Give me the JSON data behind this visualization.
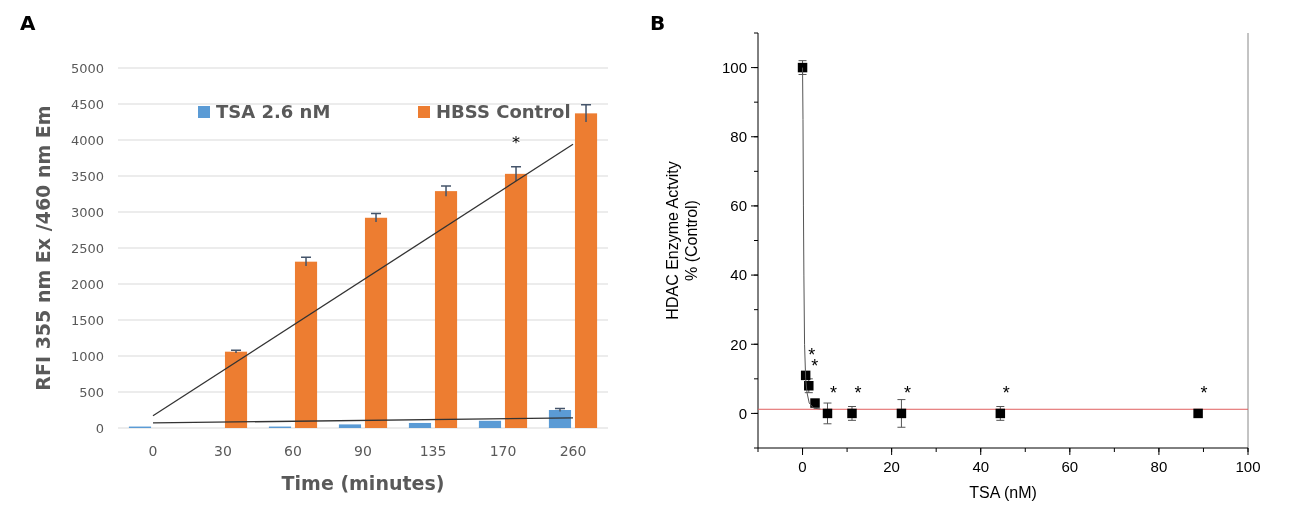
{
  "chart_data": [
    {
      "type": "bar",
      "title": "A",
      "xlabel": "Time (minutes)",
      "ylabel": "RFI 355 nm Ex /460 nm Em",
      "categories": [
        "0",
        "30",
        "60",
        "90",
        "135",
        "170",
        "260"
      ],
      "ylim": [
        0,
        5000
      ],
      "yticks": [
        0,
        500,
        1000,
        1500,
        2000,
        2500,
        3000,
        3500,
        4000,
        4500,
        5000
      ],
      "grid": "y",
      "legend": "top",
      "annotations": [
        {
          "text": "*",
          "x": "170",
          "y": 3530
        }
      ],
      "series": [
        {
          "name": "TSA 2.6 nM",
          "color": "#5b9bd5",
          "values": [
            20,
            0,
            20,
            50,
            70,
            100,
            250
          ],
          "errors": [
            null,
            null,
            null,
            null,
            null,
            null,
            20
          ]
        },
        {
          "name": "HBSS Control",
          "color": "#ed7d31",
          "values": [
            0,
            1060,
            2310,
            2920,
            3290,
            3530,
            4370
          ],
          "errors": [
            null,
            20,
            60,
            60,
            70,
            100,
            120
          ]
        },
        {
          "type": "line",
          "x": [
            "0",
            "260"
          ],
          "values": [
            170,
            3940
          ],
          "color": "#333333"
        },
        {
          "type": "line",
          "x": [
            "0",
            "260"
          ],
          "values": [
            70,
            140
          ],
          "color": "#333333"
        }
      ]
    },
    {
      "type": "scatter",
      "title": "B",
      "xlabel": "TSA (nM)",
      "ylabel": "HDAC Enzyme Actvity\n% (Control)",
      "xlim": [
        -10,
        100
      ],
      "ylim": [
        -10,
        110
      ],
      "xticks": [
        0,
        20,
        40,
        60,
        80,
        100
      ],
      "yticks": [
        0,
        20,
        40,
        60,
        80,
        100
      ],
      "grid": false,
      "ref_lines": [
        {
          "axis": "y",
          "value": 1.2,
          "color": "#e06060"
        }
      ],
      "annotations": [
        {
          "text": "*",
          "x": 0.7,
          "y": 11
        },
        {
          "text": "*",
          "x": 1.4,
          "y": 8
        },
        {
          "text": "*",
          "x": 5.6,
          "y": 0
        },
        {
          "text": "*",
          "x": 11.1,
          "y": 0
        },
        {
          "text": "*",
          "x": 22.2,
          "y": 0
        },
        {
          "text": "*",
          "x": 44.4,
          "y": 0
        },
        {
          "text": "*",
          "x": 88.8,
          "y": 0
        }
      ],
      "series": [
        {
          "color": "#000000",
          "marker": "square",
          "x": [
            0,
            0.7,
            1.4,
            2.8,
            5.6,
            11.1,
            22.2,
            44.4,
            88.8
          ],
          "values": [
            100,
            11,
            8,
            3,
            0,
            0,
            0,
            0,
            0
          ],
          "errors": [
            2,
            null,
            2,
            null,
            3,
            2,
            4,
            2,
            null
          ]
        },
        {
          "type": "line",
          "color": "#555555",
          "x": [
            0,
            0.1,
            0.2,
            0.3,
            0.45,
            0.7,
            1,
            1.5,
            2.5,
            4
          ],
          "values": [
            100,
            85,
            60,
            40,
            20,
            10,
            6,
            3,
            1.5,
            1.3
          ]
        }
      ]
    }
  ]
}
